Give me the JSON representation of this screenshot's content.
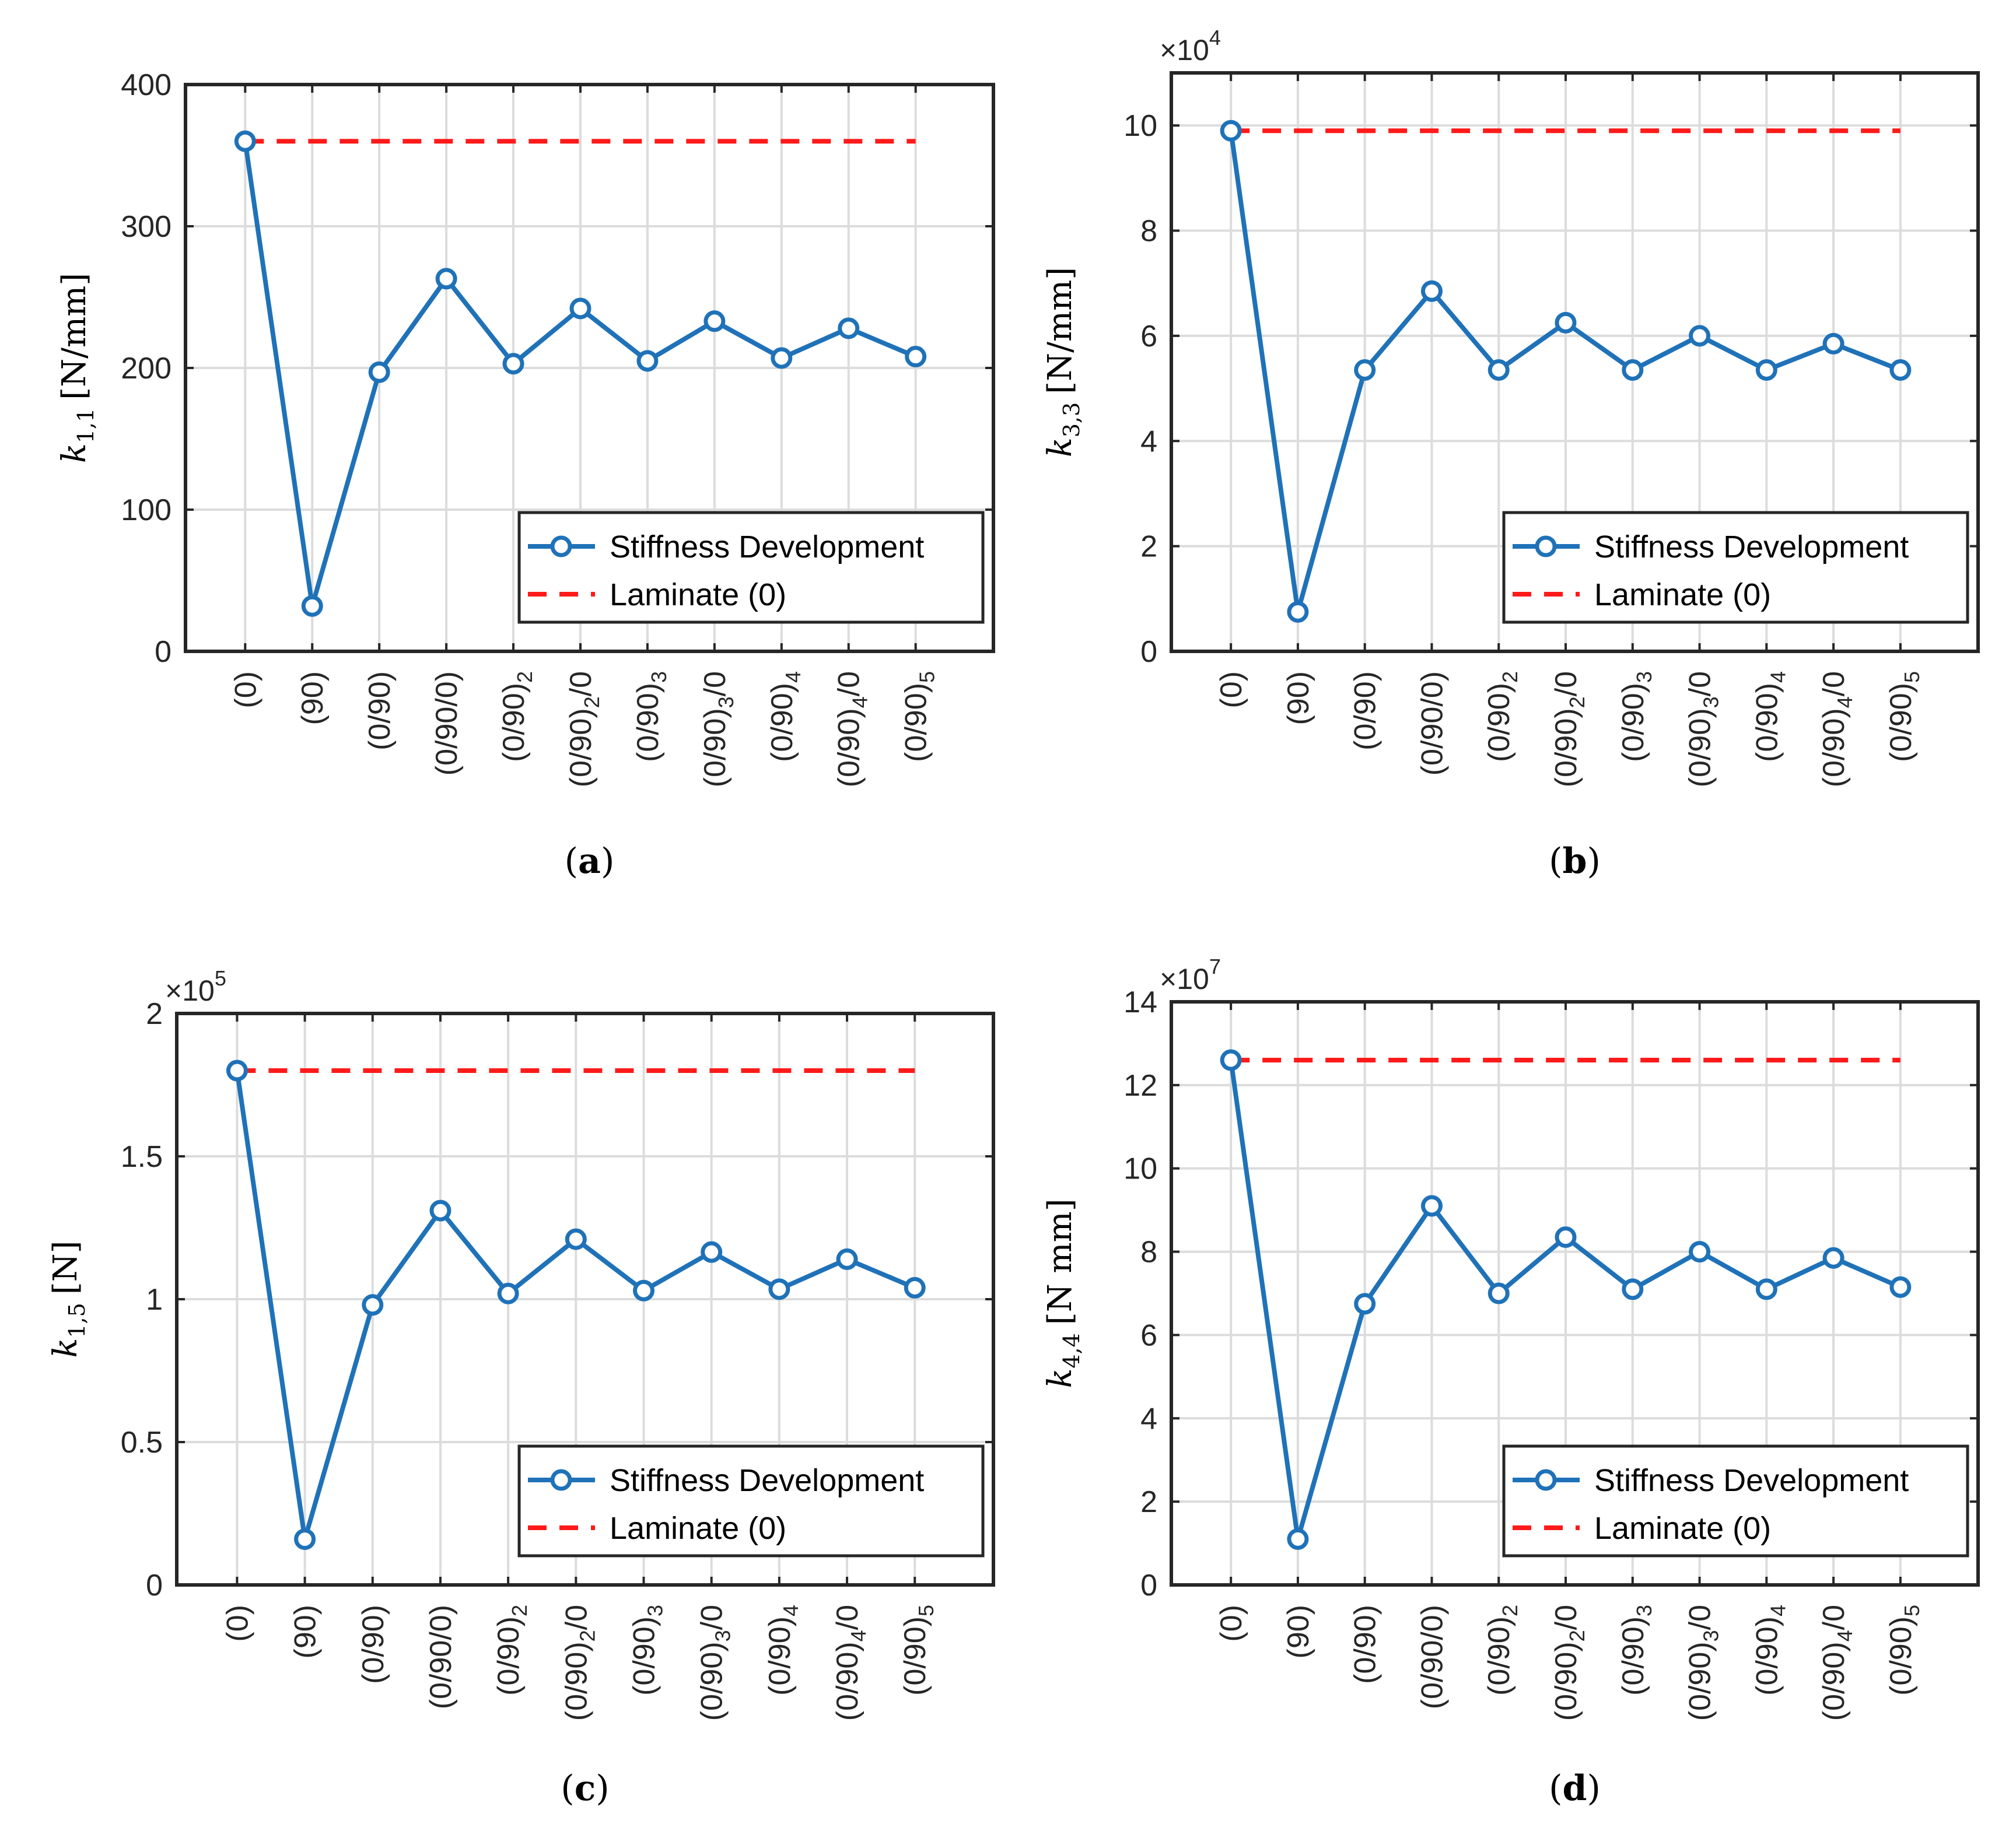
{
  "figure": {
    "legend": {
      "series_label": "Stiffness Development",
      "reference_label": "Laminate (0)"
    },
    "colors": {
      "series": "#1f72b8",
      "reference": "#ff1a1a",
      "grid": "#dcdcdc",
      "axis": "#262626"
    }
  },
  "chart_data": [
    {
      "type": "line",
      "panel": "a",
      "caption_letter": "a",
      "ylabel_main": "k",
      "ylabel_sub": "1,1",
      "ylabel_unit": "[N/mm]",
      "exponent_base": "",
      "exponent_power": "",
      "ylim": [
        0,
        400
      ],
      "yticks": [
        0,
        100,
        200,
        300,
        400
      ],
      "ytick_labels": [
        "0",
        "100",
        "200",
        "300",
        "400"
      ],
      "categories": [
        {
          "main": "(0)",
          "sub": "",
          "tail": ""
        },
        {
          "main": "(90)",
          "sub": "",
          "tail": ""
        },
        {
          "main": "(0/90)",
          "sub": "",
          "tail": ""
        },
        {
          "main": "(0/90/0)",
          "sub": "",
          "tail": ""
        },
        {
          "main": "(0/90)",
          "sub": "2",
          "tail": ""
        },
        {
          "main": "(0/90)",
          "sub": "2",
          "tail": "/0"
        },
        {
          "main": "(0/90)",
          "sub": "3",
          "tail": ""
        },
        {
          "main": "(0/90)",
          "sub": "3",
          "tail": "/0"
        },
        {
          "main": "(0/90)",
          "sub": "4",
          "tail": ""
        },
        {
          "main": "(0/90)",
          "sub": "4",
          "tail": "/0"
        },
        {
          "main": "(0/90)",
          "sub": "5",
          "tail": ""
        }
      ],
      "series": [
        {
          "name": "Stiffness Development",
          "values": [
            360,
            32,
            197,
            263,
            203,
            242,
            205,
            233,
            207,
            228,
            208
          ]
        },
        {
          "name": "Laminate (0)",
          "values": [
            360,
            360,
            360,
            360,
            360,
            360,
            360,
            360,
            360,
            360,
            360
          ]
        }
      ],
      "grid": true,
      "legend_position": "lower-right"
    },
    {
      "type": "line",
      "panel": "b",
      "caption_letter": "b",
      "ylabel_main": "k",
      "ylabel_sub": "3,3",
      "ylabel_unit": "[N/mm]",
      "exponent_base": "×10",
      "exponent_power": "4",
      "ylim": [
        0,
        11
      ],
      "yticks": [
        0,
        2,
        4,
        6,
        8,
        10
      ],
      "ytick_labels": [
        "0",
        "2",
        "4",
        "6",
        "8",
        "10"
      ],
      "categories": [
        {
          "main": "(0)",
          "sub": "",
          "tail": ""
        },
        {
          "main": "(90)",
          "sub": "",
          "tail": ""
        },
        {
          "main": "(0/90)",
          "sub": "",
          "tail": ""
        },
        {
          "main": "(0/90/0)",
          "sub": "",
          "tail": ""
        },
        {
          "main": "(0/90)",
          "sub": "2",
          "tail": ""
        },
        {
          "main": "(0/90)",
          "sub": "2",
          "tail": "/0"
        },
        {
          "main": "(0/90)",
          "sub": "3",
          "tail": ""
        },
        {
          "main": "(0/90)",
          "sub": "3",
          "tail": "/0"
        },
        {
          "main": "(0/90)",
          "sub": "4",
          "tail": ""
        },
        {
          "main": "(0/90)",
          "sub": "4",
          "tail": "/0"
        },
        {
          "main": "(0/90)",
          "sub": "5",
          "tail": ""
        }
      ],
      "series": [
        {
          "name": "Stiffness Development",
          "values": [
            9.9,
            0.75,
            5.35,
            6.85,
            5.35,
            6.25,
            5.35,
            6.0,
            5.35,
            5.85,
            5.35
          ]
        },
        {
          "name": "Laminate (0)",
          "values": [
            9.9,
            9.9,
            9.9,
            9.9,
            9.9,
            9.9,
            9.9,
            9.9,
            9.9,
            9.9,
            9.9
          ]
        }
      ],
      "grid": true,
      "legend_position": "lower-right"
    },
    {
      "type": "line",
      "panel": "c",
      "caption_letter": "c",
      "ylabel_main": "k",
      "ylabel_sub": "1,5",
      "ylabel_unit": "[N]",
      "exponent_base": "×10",
      "exponent_power": "5",
      "ylim": [
        0,
        2
      ],
      "yticks": [
        0,
        0.5,
        1,
        1.5,
        2
      ],
      "ytick_labels": [
        "0",
        "0.5",
        "1",
        "1.5",
        "2"
      ],
      "categories": [
        {
          "main": "(0)",
          "sub": "",
          "tail": ""
        },
        {
          "main": "(90)",
          "sub": "",
          "tail": ""
        },
        {
          "main": "(0/90)",
          "sub": "",
          "tail": ""
        },
        {
          "main": "(0/90/0)",
          "sub": "",
          "tail": ""
        },
        {
          "main": "(0/90)",
          "sub": "2",
          "tail": ""
        },
        {
          "main": "(0/90)",
          "sub": "2",
          "tail": "/0"
        },
        {
          "main": "(0/90)",
          "sub": "3",
          "tail": ""
        },
        {
          "main": "(0/90)",
          "sub": "3",
          "tail": "/0"
        },
        {
          "main": "(0/90)",
          "sub": "4",
          "tail": ""
        },
        {
          "main": "(0/90)",
          "sub": "4",
          "tail": "/0"
        },
        {
          "main": "(0/90)",
          "sub": "5",
          "tail": ""
        }
      ],
      "series": [
        {
          "name": "Stiffness Development",
          "values": [
            1.8,
            0.16,
            0.98,
            1.31,
            1.02,
            1.21,
            1.03,
            1.165,
            1.035,
            1.14,
            1.04
          ]
        },
        {
          "name": "Laminate (0)",
          "values": [
            1.8,
            1.8,
            1.8,
            1.8,
            1.8,
            1.8,
            1.8,
            1.8,
            1.8,
            1.8,
            1.8
          ]
        }
      ],
      "grid": true,
      "legend_position": "lower-right"
    },
    {
      "type": "line",
      "panel": "d",
      "caption_letter": "d",
      "ylabel_main": "k",
      "ylabel_sub": "4,4",
      "ylabel_unit": "[N mm]",
      "exponent_base": "×10",
      "exponent_power": "7",
      "ylim": [
        0,
        14
      ],
      "yticks": [
        0,
        2,
        4,
        6,
        8,
        10,
        12,
        14
      ],
      "ytick_labels": [
        "0",
        "2",
        "4",
        "6",
        "8",
        "10",
        "12",
        "14"
      ],
      "categories": [
        {
          "main": "(0)",
          "sub": "",
          "tail": ""
        },
        {
          "main": "(90)",
          "sub": "",
          "tail": ""
        },
        {
          "main": "(0/90)",
          "sub": "",
          "tail": ""
        },
        {
          "main": "(0/90/0)",
          "sub": "",
          "tail": ""
        },
        {
          "main": "(0/90)",
          "sub": "2",
          "tail": ""
        },
        {
          "main": "(0/90)",
          "sub": "2",
          "tail": "/0"
        },
        {
          "main": "(0/90)",
          "sub": "3",
          "tail": ""
        },
        {
          "main": "(0/90)",
          "sub": "3",
          "tail": "/0"
        },
        {
          "main": "(0/90)",
          "sub": "4",
          "tail": ""
        },
        {
          "main": "(0/90)",
          "sub": "4",
          "tail": "/0"
        },
        {
          "main": "(0/90)",
          "sub": "5",
          "tail": ""
        }
      ],
      "series": [
        {
          "name": "Stiffness Development",
          "values": [
            12.6,
            1.1,
            6.75,
            9.1,
            7.0,
            8.35,
            7.1,
            8.0,
            7.1,
            7.85,
            7.15
          ]
        },
        {
          "name": "Laminate (0)",
          "values": [
            12.6,
            12.6,
            12.6,
            12.6,
            12.6,
            12.6,
            12.6,
            12.6,
            12.6,
            12.6,
            12.6
          ]
        }
      ],
      "grid": true,
      "legend_position": "lower-right"
    }
  ]
}
